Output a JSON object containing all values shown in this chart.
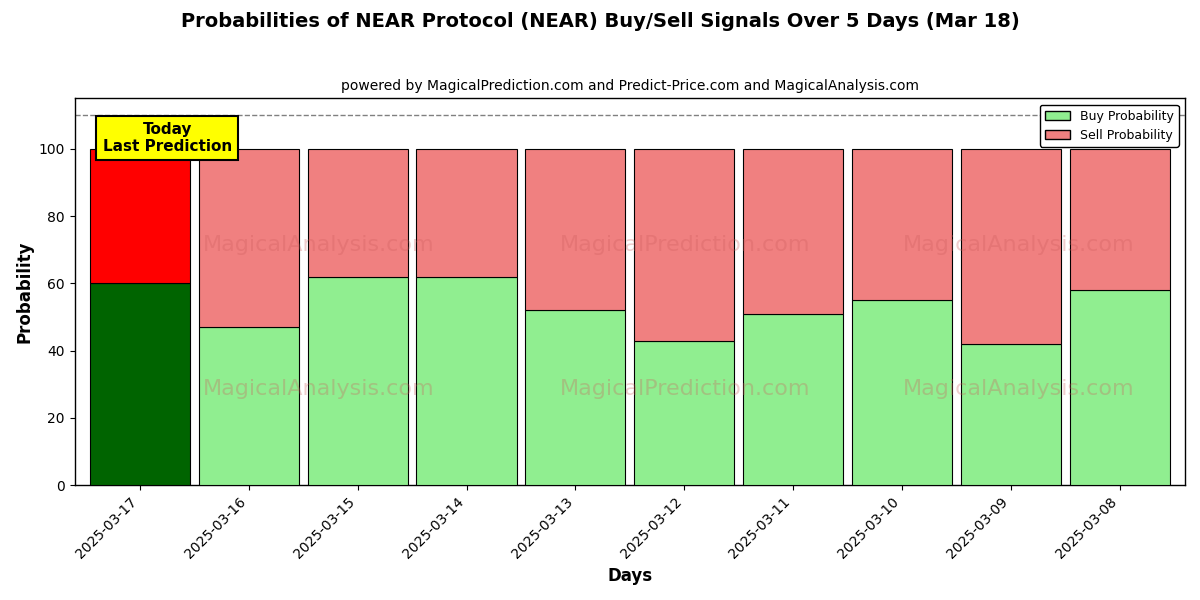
{
  "title": "Probabilities of NEAR Protocol (NEAR) Buy/Sell Signals Over 5 Days (Mar 18)",
  "subtitle": "powered by MagicalPrediction.com and Predict-Price.com and MagicalAnalysis.com",
  "xlabel": "Days",
  "ylabel": "Probability",
  "dates": [
    "2025-03-17",
    "2025-03-16",
    "2025-03-15",
    "2025-03-14",
    "2025-03-13",
    "2025-03-12",
    "2025-03-11",
    "2025-03-10",
    "2025-03-09",
    "2025-03-08"
  ],
  "buy_values": [
    60,
    47,
    62,
    62,
    52,
    43,
    51,
    55,
    42,
    58
  ],
  "sell_values": [
    40,
    53,
    38,
    38,
    48,
    57,
    49,
    45,
    58,
    42
  ],
  "today_buy_color": "#006400",
  "today_sell_color": "#ff0000",
  "buy_color": "#90EE90",
  "sell_color": "#F08080",
  "today_label_bg": "#ffff00",
  "today_label_text": "Today\nLast Prediction",
  "legend_buy": "Buy Probability",
  "legend_sell": "Sell Probability",
  "ylim": [
    0,
    115
  ],
  "dashed_line_y": 110,
  "bar_edge_color": "#000000",
  "grid_color": "#ffffff",
  "bg_color": "#ffffff",
  "plot_bg_color": "#ffffff",
  "watermark_text1": "MagicalAnalysis.com",
  "watermark_text2": "MagicalPrediction.com",
  "watermark_color": "#cd5c5c"
}
